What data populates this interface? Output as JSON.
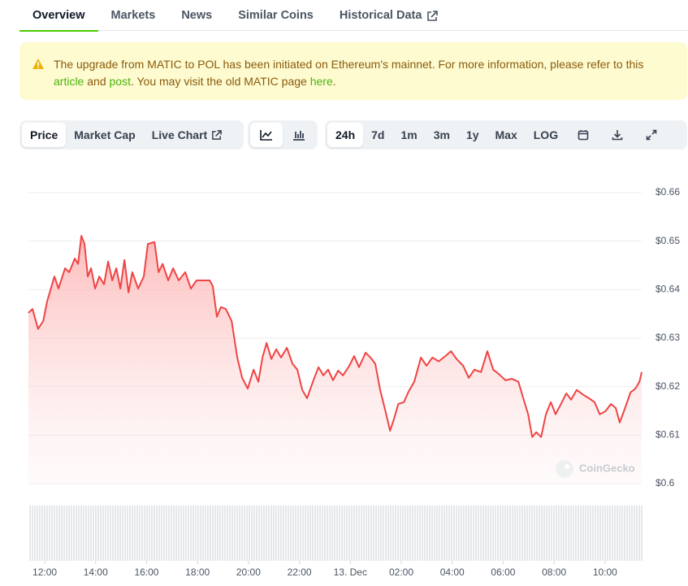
{
  "tabs": [
    "Overview",
    "Markets",
    "News",
    "Similar Coins",
    "Historical Data"
  ],
  "notice": {
    "parts": [
      "The upgrade from MATIC to POL has been initiated on Ethereum's mainnet. For more information, please refer to this ",
      "article",
      " and ",
      "post",
      ". You may visit the old MATIC page ",
      "here",
      "."
    ]
  },
  "toolbar": {
    "metrics": [
      "Price",
      "Market Cap",
      "Live Chart"
    ],
    "ranges": [
      "24h",
      "7d",
      "1m",
      "3m",
      "1y",
      "Max",
      "LOG"
    ]
  },
  "chart_data": {
    "type": "line",
    "watermark": "CoinGecko",
    "color": "#ef4444",
    "x": [
      11.36,
      11.52,
      11.74,
      11.94,
      12.1,
      12.38,
      12.54,
      12.8,
      12.96,
      13.18,
      13.31,
      13.44,
      13.56,
      13.69,
      13.82,
      13.98,
      14.14,
      14.33,
      14.49,
      14.65,
      14.81,
      14.97,
      15.13,
      15.29,
      15.44,
      15.67,
      15.89,
      16.05,
      16.31,
      16.47,
      16.63,
      16.85,
      17.04,
      17.26,
      17.52,
      17.74,
      17.96,
      18.48,
      18.6,
      18.76,
      18.92,
      19.11,
      19.34,
      19.56,
      19.75,
      19.97,
      20.2,
      20.39,
      20.55,
      20.71,
      20.9,
      21.09,
      21.28,
      21.51,
      21.73,
      21.92,
      22.11,
      22.3,
      22.53,
      22.75,
      22.94,
      23.13,
      23.32,
      23.52,
      23.71,
      23.96,
      24.15,
      24.34,
      24.6,
      24.79,
      24.98,
      25.17,
      25.37,
      25.56,
      25.72,
      25.88,
      26.1,
      26.29,
      26.51,
      26.77,
      26.99,
      27.22,
      27.47,
      27.73,
      27.95,
      28.17,
      28.43,
      28.65,
      28.87,
      29.13,
      29.38,
      29.61,
      29.83,
      30.09,
      30.34,
      30.6,
      30.79,
      30.98,
      31.14,
      31.3,
      31.49,
      31.68,
      31.87,
      32.06,
      32.26,
      32.48,
      32.67,
      32.89,
      33.15,
      33.37,
      33.59,
      33.79,
      34.01,
      34.23,
      34.42,
      34.58,
      34.81,
      35.0,
      35.19,
      35.35,
      35.44
    ],
    "values": [
      0.6352,
      0.636,
      0.6319,
      0.6335,
      0.6377,
      0.6427,
      0.6402,
      0.6444,
      0.6436,
      0.6464,
      0.6453,
      0.6511,
      0.6494,
      0.6427,
      0.6444,
      0.6402,
      0.6427,
      0.6411,
      0.6458,
      0.6419,
      0.6444,
      0.6402,
      0.6461,
      0.6394,
      0.6436,
      0.6402,
      0.6427,
      0.6494,
      0.6498,
      0.6436,
      0.6453,
      0.6419,
      0.6444,
      0.6419,
      0.6436,
      0.6402,
      0.6419,
      0.6419,
      0.6407,
      0.6344,
      0.6364,
      0.636,
      0.6335,
      0.626,
      0.6218,
      0.6196,
      0.6235,
      0.621,
      0.626,
      0.629,
      0.6257,
      0.6277,
      0.626,
      0.628,
      0.6247,
      0.6235,
      0.6193,
      0.6176,
      0.621,
      0.624,
      0.6223,
      0.6235,
      0.6213,
      0.6233,
      0.6223,
      0.6243,
      0.6263,
      0.624,
      0.627,
      0.626,
      0.6247,
      0.6193,
      0.6151,
      0.6109,
      0.6134,
      0.6164,
      0.6168,
      0.619,
      0.621,
      0.626,
      0.6243,
      0.626,
      0.6252,
      0.6263,
      0.6273,
      0.6257,
      0.6243,
      0.6218,
      0.6235,
      0.623,
      0.6273,
      0.6235,
      0.6226,
      0.6213,
      0.6216,
      0.621,
      0.6176,
      0.6143,
      0.6096,
      0.6106,
      0.6096,
      0.6143,
      0.6168,
      0.6143,
      0.6163,
      0.6186,
      0.6173,
      0.6193,
      0.6183,
      0.6176,
      0.6168,
      0.6143,
      0.6149,
      0.6164,
      0.6156,
      0.6126,
      0.6159,
      0.6188,
      0.6196,
      0.621,
      0.623
    ],
    "xlim": [
      11.36,
      35.44
    ],
    "xticks": [
      {
        "value": 12,
        "label": "12:00"
      },
      {
        "value": 14,
        "label": "14:00"
      },
      {
        "value": 16,
        "label": "16:00"
      },
      {
        "value": 18,
        "label": "18:00"
      },
      {
        "value": 20,
        "label": "20:00"
      },
      {
        "value": 22,
        "label": "22:00"
      },
      {
        "value": 24,
        "label": "13. Dec"
      },
      {
        "value": 26,
        "label": "02:00"
      },
      {
        "value": 28,
        "label": "04:00"
      },
      {
        "value": 30,
        "label": "06:00"
      },
      {
        "value": 32,
        "label": "08:00"
      },
      {
        "value": 34,
        "label": "10:00"
      }
    ],
    "ylim": [
      0.6,
      0.66
    ],
    "yticks": [
      {
        "value": 0.66,
        "label": "$0.66"
      },
      {
        "value": 0.65,
        "label": "$0.65"
      },
      {
        "value": 0.64,
        "label": "$0.64"
      },
      {
        "value": 0.63,
        "label": "$0.63"
      },
      {
        "value": 0.62,
        "label": "$0.62"
      },
      {
        "value": 0.61,
        "label": "$0.61"
      },
      {
        "value": 0.6,
        "label": "$0.6"
      }
    ],
    "grid": true
  }
}
